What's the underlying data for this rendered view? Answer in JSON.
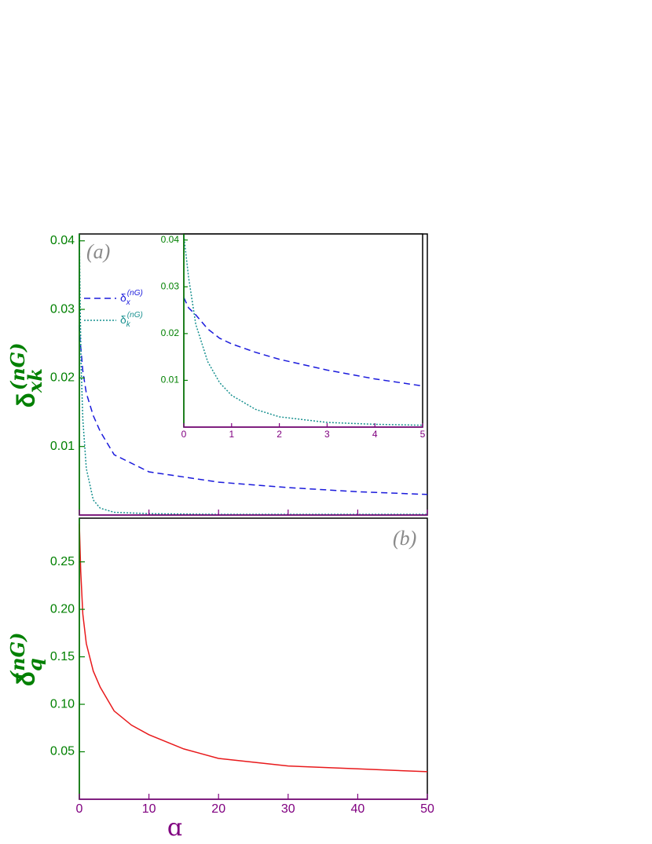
{
  "chart_data": [
    {
      "type": "line",
      "panel_label": "(a)",
      "y_label": {
        "symbol": "δ",
        "sub": "xk",
        "sup": "(nG)"
      },
      "x": [
        0,
        0.1,
        0.25,
        0.5,
        1,
        2,
        3,
        5,
        10,
        20,
        30,
        40,
        50
      ],
      "series": [
        {
          "name": "δ",
          "sub": "x",
          "sup": "(nG)",
          "color": "#1a1adc",
          "dash": "8,5",
          "values": [
            0.0277,
            0.0255,
            0.024,
            0.021,
            0.0178,
            0.0145,
            0.0122,
            0.0088,
            0.0063,
            0.0048,
            0.004,
            0.0034,
            0.003
          ]
        },
        {
          "name": "δ",
          "sub": "k",
          "sup": "(nG)",
          "color": "#17908f",
          "dash": "2,2",
          "values": [
            0.041,
            0.032,
            0.022,
            0.014,
            0.0068,
            0.0022,
            0.001,
            0.0004,
            0.0002,
            0.0001,
            0.0001,
            0.0001,
            0.0001
          ]
        }
      ],
      "xlim": [
        0,
        50
      ],
      "xticks": [
        0,
        10,
        20,
        30,
        40,
        50
      ],
      "show_xtick_labels": false,
      "ylim": [
        0,
        0.041
      ],
      "yticks": [
        0.01,
        0.02,
        0.03,
        0.04
      ]
    },
    {
      "type": "line",
      "x": [
        0,
        0.1,
        0.25,
        0.5,
        0.75,
        1,
        1.5,
        2,
        3,
        4,
        5
      ],
      "series": [
        {
          "color": "#1a1adc",
          "dash": "8,5",
          "values": [
            0.0277,
            0.0255,
            0.024,
            0.021,
            0.019,
            0.0178,
            0.016,
            0.0145,
            0.0122,
            0.0103,
            0.0088
          ]
        },
        {
          "color": "#17908f",
          "dash": "2,2",
          "values": [
            0.041,
            0.032,
            0.022,
            0.014,
            0.0095,
            0.0068,
            0.0038,
            0.0022,
            0.001,
            0.0006,
            0.0004
          ]
        }
      ],
      "xlim": [
        0,
        5
      ],
      "xticks": [
        0,
        1,
        2,
        3,
        4,
        5
      ],
      "show_xtick_labels": true,
      "ylim": [
        0,
        0.0413
      ],
      "yticks": [
        0.01,
        0.02,
        0.03,
        0.04
      ]
    },
    {
      "type": "line",
      "panel_label": "(b)",
      "x_label": "ɑ",
      "y_label": {
        "symbol": "δ",
        "sub": "q",
        "sup": "(nG)"
      },
      "x": [
        0,
        0.2,
        0.5,
        1,
        2,
        3,
        5,
        7.5,
        10,
        15,
        20,
        30,
        40,
        50
      ],
      "series": [
        {
          "color": "#e8191b",
          "dash": "none",
          "values": [
            0.29,
            0.24,
            0.195,
            0.164,
            0.135,
            0.118,
            0.093,
            0.078,
            0.068,
            0.053,
            0.043,
            0.035,
            0.032,
            0.029
          ]
        }
      ],
      "xlim": [
        0,
        50
      ],
      "xticks": [
        0,
        10,
        20,
        30,
        40,
        50
      ],
      "show_xtick_labels": true,
      "ylim": [
        0,
        0.296
      ],
      "yticks": [
        {
          "value": 0.05,
          "label": "0.05"
        },
        {
          "value": 0.1,
          "label": "0.10"
        },
        {
          "value": 0.15,
          "label": "0.15"
        },
        {
          "value": 0.2,
          "label": "0.20"
        },
        {
          "value": 0.25,
          "label": "0.25"
        }
      ]
    }
  ]
}
